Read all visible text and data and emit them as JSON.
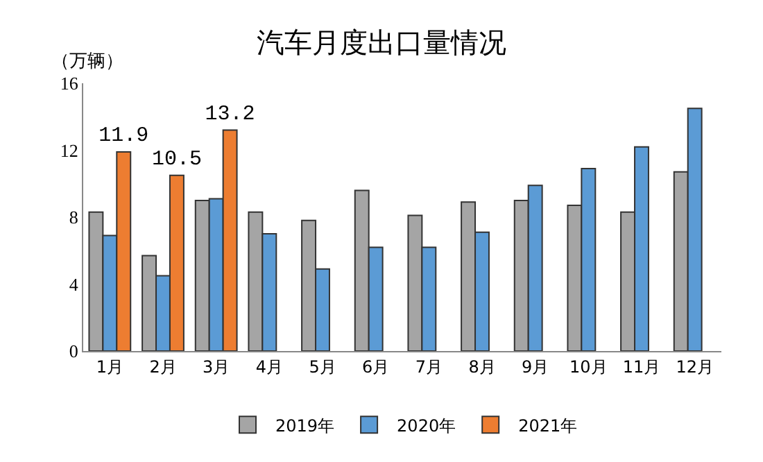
{
  "chart_data": {
    "type": "bar",
    "title": "汽车月度出口量情况",
    "ylabel": "（万辆）",
    "categories": [
      "1月",
      "2月",
      "3月",
      "4月",
      "5月",
      "6月",
      "7月",
      "8月",
      "9月",
      "10月",
      "11月",
      "12月"
    ],
    "series": [
      {
        "name": "2019年",
        "color": "#a5a5a5",
        "values": [
          8.3,
          5.7,
          9.0,
          8.3,
          7.8,
          9.6,
          8.1,
          8.9,
          9.0,
          8.7,
          8.3,
          10.7
        ]
      },
      {
        "name": "2020年",
        "color": "#5b9bd5",
        "values": [
          6.9,
          4.5,
          9.1,
          7.0,
          4.9,
          6.2,
          6.2,
          7.1,
          9.9,
          10.9,
          12.2,
          14.5
        ]
      },
      {
        "name": "2021年",
        "color": "#ed7d31",
        "values": [
          11.9,
          10.5,
          13.2,
          null,
          null,
          null,
          null,
          null,
          null,
          null,
          null,
          null
        ],
        "value_labels": [
          "11.9",
          "10.5",
          "13.2",
          null,
          null,
          null,
          null,
          null,
          null,
          null,
          null,
          null
        ]
      }
    ],
    "ylim": [
      0,
      16
    ],
    "yticks": [
      0,
      4,
      8,
      12,
      16
    ],
    "grid": false,
    "legend": "bottom"
  }
}
